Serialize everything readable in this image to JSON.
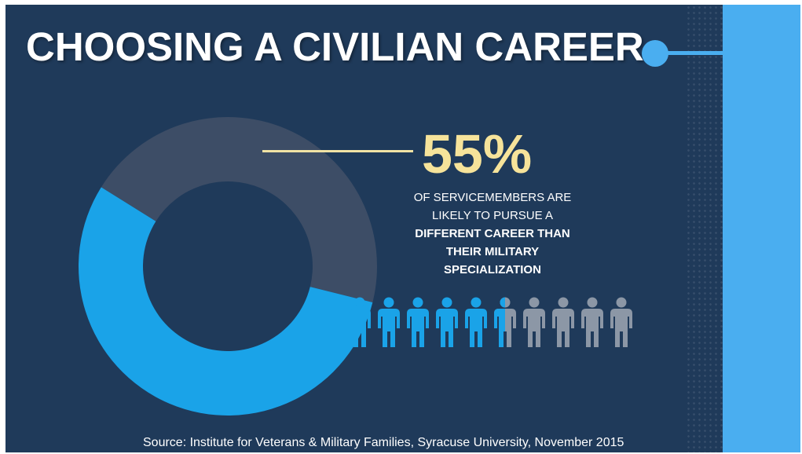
{
  "title": "CHOOSING A CIVILIAN CAREER",
  "stat": {
    "value": "55%",
    "line1": "OF SERVICEMEMBERS ARE",
    "line2": "LIKELY TO PURSUE A",
    "line3": "DIFFERENT CAREER THAN",
    "line4": "THEIR MILITARY",
    "line5": "SPECIALIZATION"
  },
  "source": "Source: Institute for Veterans & Military Families, Syracuse University, November 2015",
  "colors": {
    "background": "#1f3a5a",
    "highlight": "#1aa3e8",
    "remainder": "#3d4d66",
    "person_gray": "#8c97a6",
    "accent_yellow": "#f6e39a",
    "sidebar": "#4aaef0"
  },
  "chart_data": [
    {
      "type": "pie",
      "style": "donut",
      "values": [
        55,
        45
      ]
    },
    {
      "type": "pictograph",
      "icon": "person-icon",
      "total": 10,
      "filled": 5.5
    }
  ]
}
